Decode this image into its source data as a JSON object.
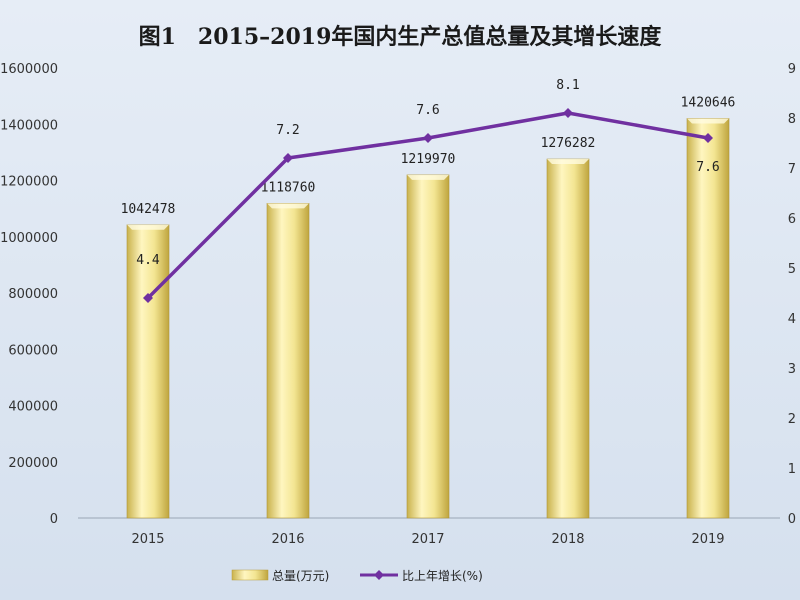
{
  "chart_data": {
    "type": "bar",
    "title": "图1　2015–2019年国内生产总值总量及其增长速度",
    "categories": [
      "2015",
      "2016",
      "2017",
      "2018",
      "2019"
    ],
    "series": [
      {
        "name": "总量(万元)",
        "type": "bar",
        "axis": "left",
        "values": [
          1042478,
          1118760,
          1219970,
          1276282,
          1420646
        ],
        "value_labels": [
          "1042478",
          "1118760",
          "1219970",
          "1276282",
          "1420646"
        ],
        "color": "#eddc8a"
      },
      {
        "name": "比上年增长(%)",
        "type": "line",
        "axis": "right",
        "values": [
          4.4,
          7.2,
          7.6,
          8.1,
          7.6
        ],
        "value_labels": [
          "4.4",
          "7.2",
          "7.6",
          "8.1",
          "7.6"
        ],
        "color": "#7030a0"
      }
    ],
    "y_left": {
      "min": 0,
      "max": 1600000,
      "ticks": [
        0,
        200000,
        400000,
        600000,
        800000,
        1000000,
        1200000,
        1400000,
        1600000
      ],
      "tick_labels": [
        "0",
        "200000",
        "400000",
        "600000",
        "800000",
        "1000000",
        "1200000",
        "1400000",
        "1600000"
      ]
    },
    "y_right": {
      "min": 0,
      "max": 9,
      "ticks": [
        0,
        1,
        2,
        3,
        4,
        5,
        6,
        7,
        8,
        9
      ],
      "tick_labels": [
        "0",
        "1",
        "2",
        "3",
        "4",
        "5",
        "6",
        "7",
        "8",
        "9"
      ]
    },
    "grid": false,
    "legend_position": "bottom"
  }
}
